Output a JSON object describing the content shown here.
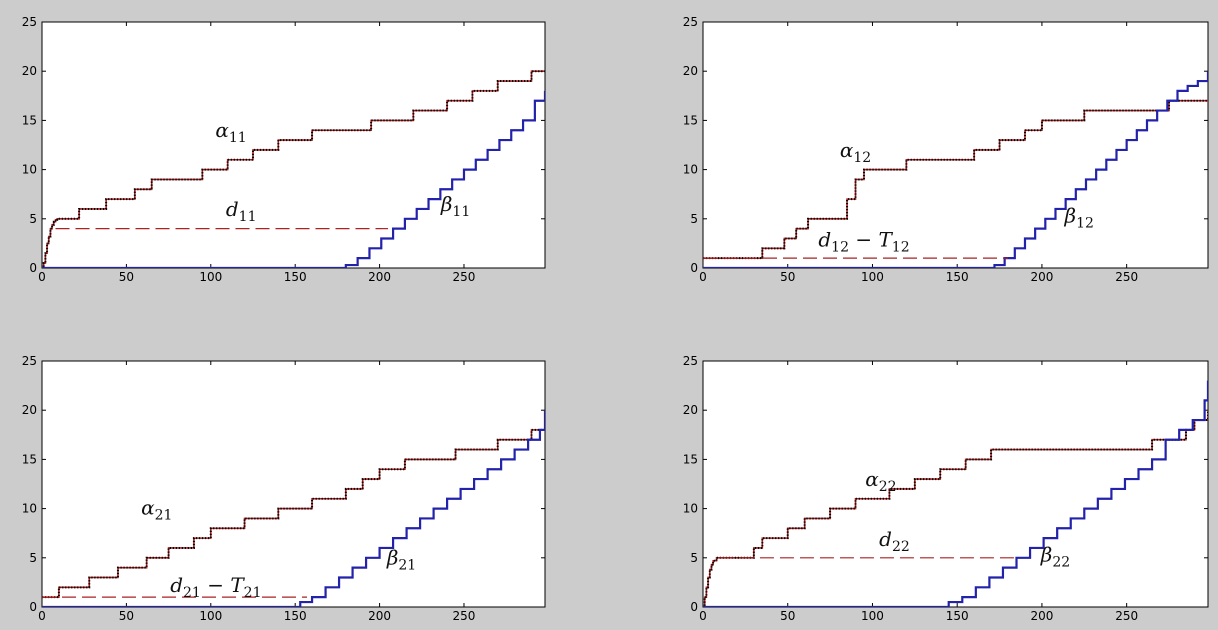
{
  "chart_data": [
    {
      "type": "line",
      "xlim": [
        0,
        298
      ],
      "ylim": [
        0,
        25
      ],
      "xticks": [
        0,
        50,
        100,
        150,
        200,
        250
      ],
      "yticks": [
        0,
        5,
        10,
        15,
        20,
        25
      ],
      "grid": false,
      "series": [
        {
          "id": "alpha",
          "style": "dotted",
          "color": "#000000",
          "shadow_color": "#aa2222",
          "x": [
            0,
            1,
            2,
            3,
            4,
            5,
            6,
            7,
            8,
            9,
            10,
            22,
            32,
            38,
            50,
            55,
            62,
            65,
            70,
            80,
            85,
            95,
            100,
            110,
            115,
            125,
            130,
            140,
            145,
            160,
            165,
            175,
            185,
            195,
            210,
            220,
            230,
            240,
            250,
            255,
            265,
            270,
            280,
            288,
            290,
            298
          ],
          "y": [
            0,
            0.5,
            1.5,
            2.5,
            3.2,
            4,
            4.4,
            4.7,
            4.9,
            5,
            5,
            6,
            6,
            7,
            7,
            8,
            8,
            9,
            9,
            9,
            9,
            10,
            10,
            11,
            11,
            12,
            12,
            13,
            13,
            14,
            14,
            14,
            14,
            15,
            15,
            16,
            16,
            17,
            17,
            18,
            18,
            19,
            19,
            19,
            20,
            20
          ]
        },
        {
          "id": "beta",
          "style": "stair",
          "color": "#2222aa",
          "x": [
            0,
            180,
            187,
            194,
            201,
            208,
            215,
            222,
            229,
            236,
            243,
            250,
            257,
            264,
            271,
            278,
            285,
            292,
            298
          ],
          "y": [
            0,
            0.3,
            1,
            2,
            3,
            4,
            5,
            6,
            7,
            8,
            9,
            10,
            11,
            12,
            13,
            14,
            15,
            17,
            18
          ]
        },
        {
          "id": "delay",
          "style": "dashed",
          "color": "#aa2222",
          "x": [
            8,
            205
          ],
          "y": [
            4,
            4
          ]
        }
      ],
      "annotations": [
        {
          "base": "α",
          "sub": "11",
          "x": 112,
          "y": 13.3
        },
        {
          "base": "d",
          "sub": "11",
          "x": 118,
          "y": 5.3
        },
        {
          "base": "β",
          "sub": "11",
          "x": 245,
          "y": 5.8
        }
      ]
    },
    {
      "type": "line",
      "xlim": [
        0,
        298
      ],
      "ylim": [
        0,
        25
      ],
      "xticks": [
        0,
        50,
        100,
        150,
        200,
        250
      ],
      "yticks": [
        0,
        5,
        10,
        15,
        20,
        25
      ],
      "grid": false,
      "series": [
        {
          "id": "alpha",
          "style": "dotted",
          "color": "#000000",
          "shadow_color": "#aa2222",
          "x": [
            0,
            30,
            35,
            42,
            48,
            55,
            62,
            78,
            85,
            90,
            95,
            105,
            120,
            135,
            155,
            160,
            175,
            190,
            200,
            210,
            225,
            260,
            275,
            298
          ],
          "y": [
            1,
            1,
            2,
            2,
            3,
            4,
            5,
            5,
            7,
            9,
            10,
            10,
            11,
            11,
            11,
            12,
            13,
            14,
            15,
            15,
            16,
            16,
            17,
            17
          ]
        },
        {
          "id": "beta",
          "style": "stair",
          "color": "#2222aa",
          "x": [
            0,
            172,
            178,
            184,
            190,
            196,
            202,
            208,
            214,
            220,
            226,
            232,
            238,
            244,
            250,
            256,
            262,
            268,
            274,
            280,
            286,
            292,
            298
          ],
          "y": [
            0,
            0.3,
            1,
            2,
            3,
            4,
            5,
            6,
            7,
            8,
            9,
            10,
            11,
            12,
            13,
            14,
            15,
            16,
            17,
            18,
            18.5,
            19,
            20
          ]
        },
        {
          "id": "delay",
          "style": "dashed",
          "color": "#aa2222",
          "x": [
            0,
            180
          ],
          "y": [
            1,
            1
          ]
        }
      ],
      "annotations": [
        {
          "base": "α",
          "sub": "12",
          "x": 90,
          "y": 11.3
        },
        {
          "base": "d",
          "sub": "12",
          "suffix_base": " − T",
          "suffix_sub": "12",
          "x": 95,
          "y": 2.2
        },
        {
          "base": "β",
          "sub": "12",
          "x": 222,
          "y": 4.6
        }
      ]
    },
    {
      "type": "line",
      "xlim": [
        0,
        298
      ],
      "ylim": [
        0,
        25
      ],
      "xticks": [
        0,
        50,
        100,
        150,
        200,
        250
      ],
      "yticks": [
        0,
        5,
        10,
        15,
        20,
        25
      ],
      "grid": false,
      "series": [
        {
          "id": "alpha",
          "style": "dotted",
          "color": "#000000",
          "shadow_color": "#aa2222",
          "x": [
            0,
            10,
            18,
            28,
            40,
            45,
            55,
            62,
            70,
            75,
            85,
            90,
            100,
            110,
            120,
            130,
            140,
            150,
            160,
            170,
            180,
            190,
            200,
            210,
            215,
            230,
            245,
            255,
            270,
            280,
            290,
            298
          ],
          "y": [
            1,
            2,
            2,
            3,
            3,
            4,
            4,
            5,
            5,
            6,
            6,
            7,
            8,
            8,
            9,
            9,
            10,
            10,
            11,
            11,
            12,
            13,
            14,
            14,
            15,
            15,
            16,
            16,
            17,
            17,
            18,
            19
          ]
        },
        {
          "id": "beta",
          "style": "stair",
          "color": "#2222aa",
          "x": [
            0,
            153,
            160,
            168,
            176,
            184,
            192,
            200,
            208,
            216,
            224,
            232,
            240,
            248,
            256,
            264,
            272,
            280,
            288,
            295,
            298
          ],
          "y": [
            0,
            0.5,
            1,
            2,
            3,
            4,
            5,
            6,
            7,
            8,
            9,
            10,
            11,
            12,
            13,
            14,
            15,
            16,
            17,
            18,
            20
          ]
        },
        {
          "id": "delay",
          "style": "dashed",
          "color": "#aa2222",
          "x": [
            0,
            157
          ],
          "y": [
            1,
            1
          ]
        }
      ],
      "annotations": [
        {
          "base": "α",
          "sub": "21",
          "x": 68,
          "y": 9.4
        },
        {
          "base": "d",
          "sub": "21",
          "suffix_base": " − T",
          "suffix_sub": "21",
          "x": 103,
          "y": 1.5
        },
        {
          "base": "β",
          "sub": "21",
          "x": 213,
          "y": 4.3
        }
      ]
    },
    {
      "type": "line",
      "xlim": [
        0,
        298
      ],
      "ylim": [
        0,
        25
      ],
      "xticks": [
        0,
        50,
        100,
        150,
        200,
        250
      ],
      "yticks": [
        0,
        5,
        10,
        15,
        20,
        25
      ],
      "grid": false,
      "series": [
        {
          "id": "alpha",
          "style": "dotted",
          "color": "#000000",
          "shadow_color": "#aa2222",
          "x": [
            0,
            1,
            2,
            3,
            4,
            5,
            6,
            8,
            10,
            25,
            30,
            35,
            45,
            50,
            60,
            70,
            75,
            85,
            90,
            100,
            110,
            115,
            125,
            130,
            140,
            150,
            155,
            165,
            170,
            175,
            250,
            265,
            275,
            285,
            290,
            298
          ],
          "y": [
            0,
            1,
            2,
            3,
            3.8,
            4.3,
            4.7,
            5,
            5,
            5,
            6,
            7,
            7,
            8,
            9,
            9,
            10,
            10,
            11,
            11,
            12,
            12,
            13,
            13,
            14,
            14,
            15,
            15,
            16,
            16,
            16,
            17,
            17,
            18,
            19,
            20
          ]
        },
        {
          "id": "beta",
          "style": "stair",
          "color": "#2222aa",
          "x": [
            0,
            145,
            153,
            161,
            169,
            177,
            185,
            193,
            201,
            209,
            217,
            225,
            233,
            241,
            249,
            257,
            265,
            273,
            281,
            289,
            296,
            298
          ],
          "y": [
            0,
            0.5,
            1,
            2,
            3,
            4,
            5,
            6,
            7,
            8,
            9,
            10,
            11,
            12,
            13,
            14,
            15,
            17,
            18,
            19,
            21,
            23
          ]
        },
        {
          "id": "delay",
          "style": "dashed",
          "color": "#aa2222",
          "x": [
            10,
            185
          ],
          "y": [
            5,
            5
          ]
        }
      ],
      "annotations": [
        {
          "base": "α",
          "sub": "22",
          "x": 105,
          "y": 12.3
        },
        {
          "base": "d",
          "sub": "22",
          "x": 113,
          "y": 6.2
        },
        {
          "base": "β",
          "sub": "22",
          "x": 208,
          "y": 4.6
        }
      ]
    }
  ]
}
